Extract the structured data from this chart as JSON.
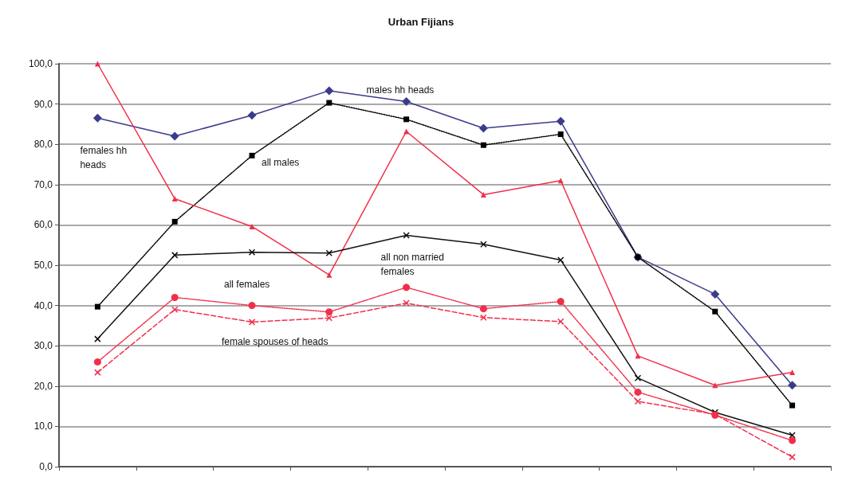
{
  "chart_data": {
    "type": "line",
    "title": "Urban Fijians",
    "categories": [
      null,
      null,
      null,
      null,
      null,
      null,
      null,
      null,
      null,
      null
    ],
    "ylim": [
      0,
      100
    ],
    "yticks": [
      {
        "value": 0,
        "label": "0,0"
      },
      {
        "value": 10,
        "label": "10,0"
      },
      {
        "value": 20,
        "label": "20,0"
      },
      {
        "value": 30,
        "label": "30,0"
      },
      {
        "value": 40,
        "label": "40,0"
      },
      {
        "value": 50,
        "label": "50,0"
      },
      {
        "value": 60,
        "label": "60,0"
      },
      {
        "value": 70,
        "label": "70,0"
      },
      {
        "value": 80,
        "label": "80,0"
      },
      {
        "value": 90,
        "label": "90,0"
      },
      {
        "value": 100,
        "label": "100,0"
      }
    ],
    "grid": "y",
    "tick_labels": "y",
    "series": [
      {
        "name": "males hh heads",
        "color": "#3b3b8c",
        "marker": "diamond",
        "line_style": "solid",
        "values": [
          86.5,
          82,
          87.2,
          93.3,
          90.6,
          84,
          85.7,
          52,
          42.8,
          20.2
        ]
      },
      {
        "name": "all males",
        "color": "#000000",
        "marker": "square",
        "line_style": "dotted",
        "values": [
          39.7,
          60.8,
          77.2,
          90.3,
          86.2,
          79.8,
          82.5,
          52,
          38.5,
          15.2
        ]
      },
      {
        "name": "females hh heads",
        "color": "#f0304a",
        "marker": "triangle",
        "line_style": "solid",
        "values": [
          100,
          66.5,
          59.6,
          47.6,
          83.2,
          67.5,
          71,
          27.5,
          20.2,
          23.4
        ]
      },
      {
        "name": "all non married females",
        "color": "#111111",
        "marker": "cross",
        "line_style": "solid",
        "values": [
          31.7,
          52.5,
          53.2,
          53,
          57.4,
          55.2,
          51.3,
          22,
          13.5,
          7.8
        ]
      },
      {
        "name": "all females",
        "color": "#f0304a",
        "marker": "circle",
        "line_style": "dotted",
        "values": [
          26,
          42,
          40,
          38.4,
          44.5,
          39.2,
          41,
          18.5,
          12.8,
          6.5
        ]
      },
      {
        "name": "female spouses of heads",
        "color": "#f0304a",
        "marker": "cross",
        "line_style": "dashed",
        "values": [
          23.4,
          39,
          35.9,
          36.9,
          40.6,
          37,
          36,
          16.2,
          13,
          2.4
        ]
      }
    ]
  }
}
